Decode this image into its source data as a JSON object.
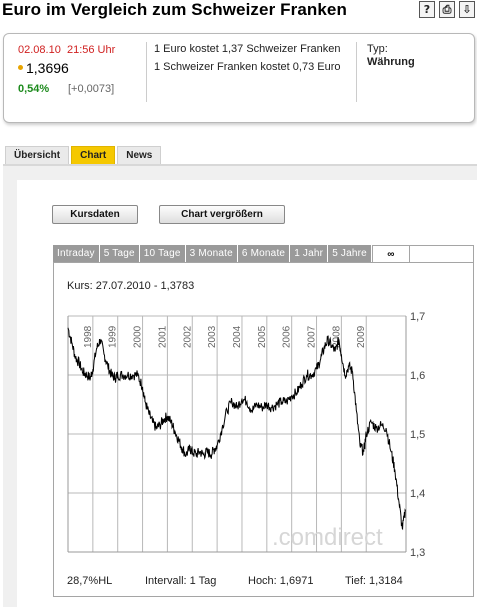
{
  "header": {
    "title": "Euro im Vergleich zum Schweizer Franken",
    "icons": [
      "help-icon",
      "print-icon",
      "export-icon"
    ],
    "icon_glyphs": [
      "?",
      "⎙",
      "⇩"
    ]
  },
  "quote": {
    "date": "02.08.10",
    "time": "21:56 Uhr",
    "price": "1,3696",
    "change_pct": "0,54%",
    "change_abs": "[+0,0073]",
    "line1": "1 Euro kostet 1,37 Schweizer Franken",
    "line2": "1 Schweizer Franken kostet 0,73 Euro",
    "type_label": "Typ:",
    "type_value": "Währung"
  },
  "tabs": [
    {
      "label": "Übersicht",
      "active": false
    },
    {
      "label": "Chart",
      "active": true
    },
    {
      "label": "News",
      "active": false
    }
  ],
  "buttons": {
    "kursdaten": "Kursdaten",
    "chart_vergroessern": "Chart vergrößern"
  },
  "range_tabs": [
    {
      "label": "Intraday",
      "active": false
    },
    {
      "label": "5 Tage",
      "active": false
    },
    {
      "label": "10 Tage",
      "active": false
    },
    {
      "label": "3 Monate",
      "active": false
    },
    {
      "label": "6 Monate",
      "active": false
    },
    {
      "label": "1 Jahr",
      "active": false
    },
    {
      "label": "5 Jahre",
      "active": false
    },
    {
      "label": "∞",
      "active": true
    }
  ],
  "kurs_label": "Kurs: 27.07.2010 - 1,3783",
  "watermark": ".comdirect",
  "footer": {
    "hl": "28,7%HL",
    "interval": "Intervall: 1 Tag",
    "hoch": "Hoch: 1,6971",
    "tief": "Tief: 1,3184"
  },
  "colors": {
    "accent_tab": "#f5c800",
    "date_red": "#d02020",
    "change_green": "#1c8a1c",
    "line": "#000000",
    "grid": "#b8b8b8"
  },
  "chart_data": {
    "type": "line",
    "title": "",
    "xlabel": "",
    "ylabel": "",
    "x_tick_labels": [
      "1998",
      "1999",
      "2000",
      "2001",
      "2002",
      "2003",
      "2004",
      "2005",
      "2006",
      "2007",
      "2008",
      "2009"
    ],
    "y_tick_labels": [
      "1,7",
      "1,6",
      "1,5",
      "1,4",
      "1,3"
    ],
    "y_ticks": [
      1.7,
      1.6,
      1.5,
      1.4,
      1.3
    ],
    "ylim": [
      1.3,
      1.7
    ],
    "xlim": [
      1997.0,
      2010.6
    ],
    "grid": true,
    "series": [
      {
        "x": [
          1997.0,
          1997.15,
          1997.3,
          1997.45,
          1997.6,
          1997.75,
          1997.9,
          1998.0,
          1998.15,
          1998.3,
          1998.45,
          1998.6,
          1998.75,
          1998.9,
          1999.0,
          1999.2,
          1999.4,
          1999.6,
          1999.8,
          2000.0,
          2000.1,
          2000.25,
          2000.4,
          2000.55,
          2000.7,
          2000.85,
          2001.0,
          2001.15,
          2001.3,
          2001.45,
          2001.6,
          2001.75,
          2001.9,
          2002.0,
          2002.15,
          2002.3,
          2002.45,
          2002.6,
          2002.75,
          2002.9,
          2003.0,
          2003.2,
          2003.4,
          2003.6,
          2003.8,
          2004.0,
          2004.2,
          2004.4,
          2004.6,
          2004.8,
          2005.0,
          2005.2,
          2005.4,
          2005.6,
          2005.8,
          2006.0,
          2006.2,
          2006.4,
          2006.6,
          2006.8,
          2007.0,
          2007.15,
          2007.3,
          2007.45,
          2007.6,
          2007.75,
          2007.9,
          2008.0,
          2008.15,
          2008.3,
          2008.45,
          2008.6,
          2008.75,
          2008.9,
          2009.0,
          2009.2,
          2009.4,
          2009.6,
          2009.8,
          2010.0,
          2010.15,
          2010.3,
          2010.45,
          2010.58
        ],
        "y": [
          1.68,
          1.655,
          1.63,
          1.62,
          1.605,
          1.6,
          1.595,
          1.61,
          1.645,
          1.66,
          1.635,
          1.615,
          1.6,
          1.595,
          1.6,
          1.6,
          1.6,
          1.6,
          1.6,
          1.58,
          1.555,
          1.535,
          1.52,
          1.51,
          1.515,
          1.525,
          1.53,
          1.52,
          1.505,
          1.49,
          1.475,
          1.465,
          1.475,
          1.47,
          1.465,
          1.47,
          1.465,
          1.47,
          1.465,
          1.475,
          1.48,
          1.51,
          1.54,
          1.555,
          1.545,
          1.56,
          1.555,
          1.54,
          1.55,
          1.545,
          1.55,
          1.545,
          1.55,
          1.555,
          1.555,
          1.565,
          1.57,
          1.585,
          1.6,
          1.6,
          1.61,
          1.625,
          1.645,
          1.66,
          1.65,
          1.64,
          1.66,
          1.635,
          1.6,
          1.615,
          1.605,
          1.54,
          1.48,
          1.47,
          1.5,
          1.52,
          1.51,
          1.515,
          1.51,
          1.47,
          1.44,
          1.39,
          1.34,
          1.37
        ]
      }
    ]
  }
}
